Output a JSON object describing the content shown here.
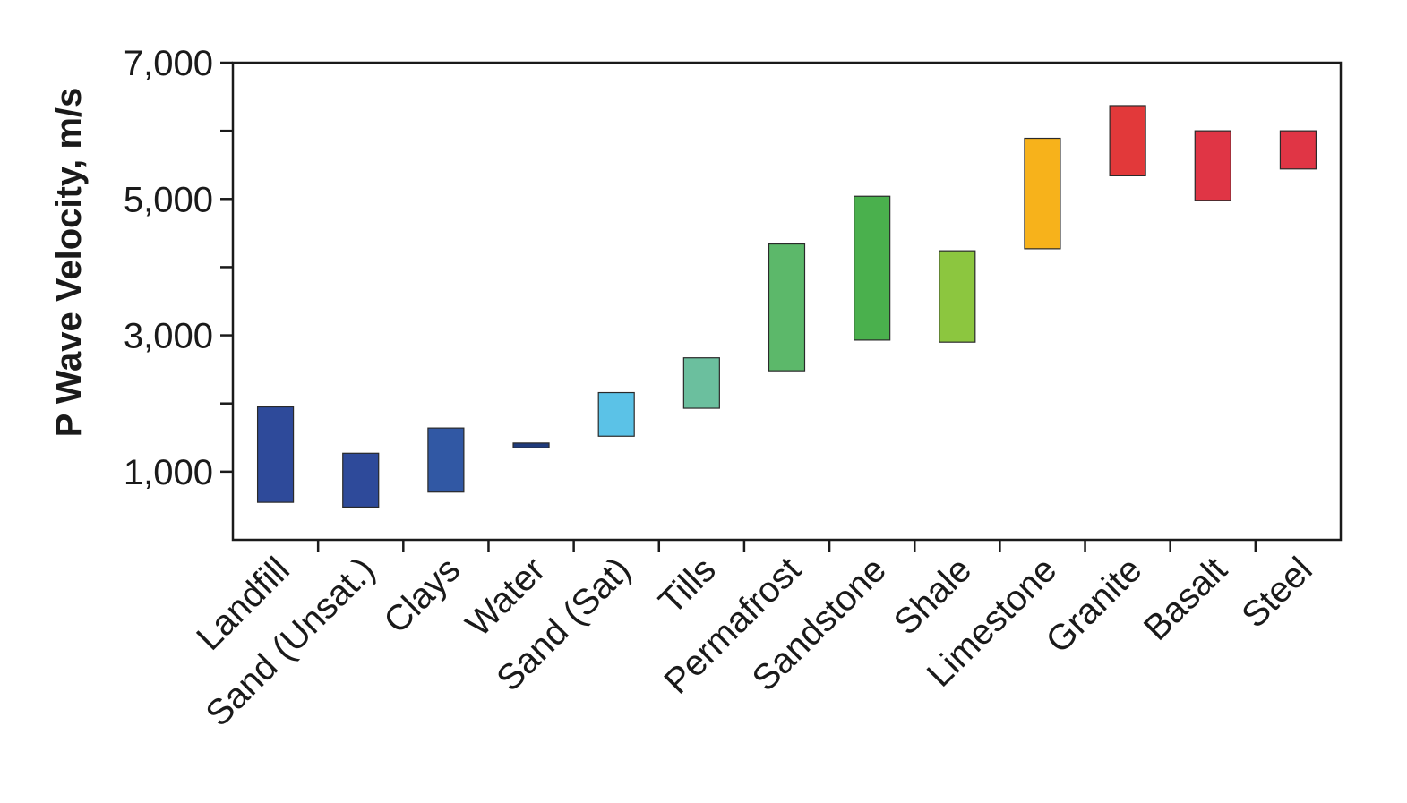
{
  "chart_data": {
    "type": "bar",
    "subtype": "floating-range",
    "title": "",
    "xlabel": "",
    "ylabel": "P Wave Velocity, m/s",
    "ylim": [
      0,
      7000
    ],
    "y_tick_values": [
      1000,
      3000,
      5000,
      7000
    ],
    "y_tick_labels": [
      "1,000",
      "3,000",
      "5,000",
      "7,000"
    ],
    "y_minor_tick_values": [
      2000,
      4000,
      6000
    ],
    "grid": false,
    "legend": "none",
    "categories": [
      "Landfill",
      "Sand (Unsat.)",
      "Clays",
      "Water",
      "Sand (Sat)",
      "Tills",
      "Permafrost",
      "Sandstone",
      "Shale",
      "Limestone",
      "Granite",
      "Basalt",
      "Steel"
    ],
    "ranges": [
      {
        "low": 550,
        "high": 1950,
        "color": "#2e4a9a"
      },
      {
        "low": 480,
        "high": 1270,
        "color": "#2e4a9a"
      },
      {
        "low": 700,
        "high": 1640,
        "color": "#3158a4"
      },
      {
        "low": 1350,
        "high": 1420,
        "color": "#1f3b7c"
      },
      {
        "low": 1520,
        "high": 2160,
        "color": "#5bc2e7"
      },
      {
        "low": 1930,
        "high": 2670,
        "color": "#6bbf9e"
      },
      {
        "low": 2480,
        "high": 4340,
        "color": "#5cb86a"
      },
      {
        "low": 2930,
        "high": 5040,
        "color": "#4ab04d"
      },
      {
        "low": 2900,
        "high": 4240,
        "color": "#8cc63f"
      },
      {
        "low": 4270,
        "high": 5890,
        "color": "#f7b21b"
      },
      {
        "low": 5340,
        "high": 6370,
        "color": "#e2393a"
      },
      {
        "low": 4980,
        "high": 6000,
        "color": "#e03545"
      },
      {
        "low": 5440,
        "high": 6000,
        "color": "#e03545"
      }
    ]
  }
}
